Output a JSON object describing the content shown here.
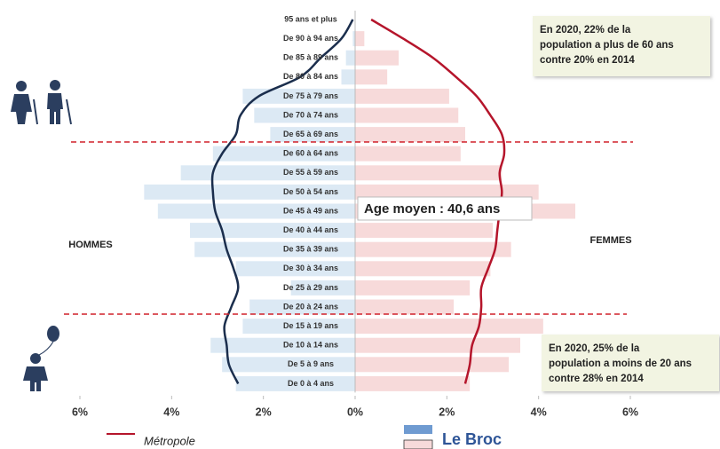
{
  "chart_data": {
    "type": "pyramid",
    "categories": [
      "95 ans et plus",
      "De 90 à 94 ans",
      "De 85 à 89 ans",
      "De 80 à 84 ans",
      "De 75 à 79 ans",
      "De 70 à 74 ans",
      "De 65 à 69 ans",
      "De 60 à 64 ans",
      "De 55 à 59 ans",
      "De 50 à 54 ans",
      "De 45 à 49 ans",
      "De 40 à 44 ans",
      "De 35 à 39 ans",
      "De 30 à 34 ans",
      "De 25 à 29 ans",
      "De 20 à 24 ans",
      "De 15 à 19 ans",
      "De 10 à 14 ans",
      "De 5 à 9 ans",
      "De 0 à 4 ans"
    ],
    "series": [
      {
        "name": "HOMMES",
        "color": "#dce9f4",
        "values": [
          0,
          0.05,
          0.2,
          0.3,
          2.45,
          2.2,
          1.85,
          3.1,
          3.8,
          4.6,
          4.3,
          3.6,
          3.5,
          2.6,
          1.4,
          2.3,
          2.45,
          3.15,
          2.9,
          2.6
        ]
      },
      {
        "name": "FEMMES",
        "color": "#f7dada",
        "values": [
          0,
          0.2,
          0.95,
          0.7,
          2.05,
          2.25,
          2.4,
          2.3,
          3.2,
          4.0,
          4.8,
          3.0,
          3.4,
          2.95,
          2.5,
          2.15,
          4.1,
          3.6,
          3.35,
          2.5
        ]
      }
    ],
    "lines": {
      "name": "Métropole",
      "series": [
        {
          "color": "#1b2e4d",
          "values": [
            0.05,
            0.3,
            0.75,
            1.2,
            2.1,
            2.5,
            2.6,
            2.9,
            3.1,
            3.1,
            3.05,
            2.9,
            2.8,
            2.65,
            2.55,
            2.7,
            2.85,
            2.8,
            2.75,
            2.55
          ]
        },
        {
          "color": "#b5152b",
          "values": [
            0.35,
            1.05,
            1.7,
            2.2,
            2.65,
            2.95,
            3.2,
            3.25,
            3.15,
            3.2,
            3.15,
            3.1,
            3.05,
            2.9,
            2.75,
            2.75,
            2.7,
            2.55,
            2.5,
            2.4
          ]
        }
      ]
    },
    "bar_legend": {
      "name": "Le Broc",
      "colors": [
        "#6f9bd1",
        "#f7dada"
      ]
    },
    "xlim": [
      -6,
      6
    ],
    "xticks": [
      {
        "value": -6,
        "label": "6%"
      },
      {
        "value": -4,
        "label": "4%"
      },
      {
        "value": -2,
        "label": "2%"
      },
      {
        "value": 0,
        "label": "0%"
      },
      {
        "value": 2,
        "label": "2%"
      },
      {
        "value": 4,
        "label": "4%"
      },
      {
        "value": 6,
        "label": "6%"
      }
    ],
    "mean_age": "Age moyen : 40,6 ans",
    "annotations": [
      [
        "En 2020,  22% de la",
        "population a plus de 60 ans",
        "contre 20% en 2014"
      ],
      [
        "En 2020,  25% de la",
        "population a moins de 20 ans",
        "contre 28% en 2014"
      ]
    ]
  }
}
